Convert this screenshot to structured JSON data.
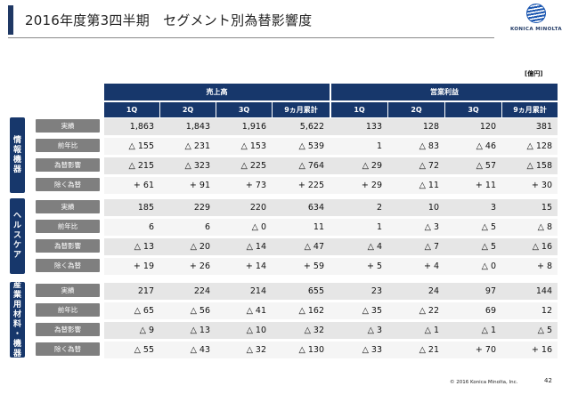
{
  "title": "2016年度第3四半期　セグメント別為替影響度",
  "logo": {
    "text": "KONICA MINOLTA"
  },
  "unit": "[億円]",
  "groups": {
    "sales": "売上高",
    "op": "営業利益"
  },
  "columns": [
    "1Q",
    "2Q",
    "3Q",
    "9ヵ月累計",
    "1Q",
    "2Q",
    "3Q",
    "9ヵ月累計"
  ],
  "segments": [
    {
      "name": "情報機器",
      "rows": [
        {
          "label": "実績",
          "values": [
            "1,863",
            "1,843",
            "1,916",
            "5,622",
            "133",
            "128",
            "120",
            "381"
          ]
        },
        {
          "label": "前年比",
          "values": [
            "△ 155",
            "△ 231",
            "△ 153",
            "△ 539",
            "1",
            "△ 83",
            "△ 46",
            "△ 128"
          ]
        },
        {
          "label": "為替影響",
          "values": [
            "△ 215",
            "△ 323",
            "△ 225",
            "△ 764",
            "△ 29",
            "△ 72",
            "△ 57",
            "△ 158"
          ]
        },
        {
          "label": "除く為替",
          "values": [
            "+ 61",
            "+ 91",
            "+ 73",
            "+ 225",
            "+ 29",
            "△ 11",
            "+ 11",
            "+ 30"
          ]
        }
      ]
    },
    {
      "name": "ヘルスケア",
      "rows": [
        {
          "label": "実績",
          "values": [
            "185",
            "229",
            "220",
            "634",
            "2",
            "10",
            "3",
            "15"
          ]
        },
        {
          "label": "前年比",
          "values": [
            "6",
            "6",
            "△ 0",
            "11",
            "1",
            "△ 3",
            "△ 5",
            "△ 8"
          ]
        },
        {
          "label": "為替影響",
          "values": [
            "△ 13",
            "△ 20",
            "△ 14",
            "△ 47",
            "△ 4",
            "△ 7",
            "△ 5",
            "△ 16"
          ]
        },
        {
          "label": "除く為替",
          "values": [
            "+ 19",
            "+ 26",
            "+ 14",
            "+ 59",
            "+ 5",
            "+ 4",
            "△ 0",
            "+ 8"
          ]
        }
      ]
    },
    {
      "name": "産業用材料・機器",
      "rows": [
        {
          "label": "実績",
          "values": [
            "217",
            "224",
            "214",
            "655",
            "23",
            "24",
            "97",
            "144"
          ]
        },
        {
          "label": "前年比",
          "values": [
            "△ 65",
            "△ 56",
            "△ 41",
            "△ 162",
            "△ 35",
            "△ 22",
            "69",
            "12"
          ]
        },
        {
          "label": "為替影響",
          "values": [
            "△ 9",
            "△ 13",
            "△ 10",
            "△ 32",
            "△ 3",
            "△ 1",
            "△ 1",
            "△ 5"
          ]
        },
        {
          "label": "除く為替",
          "values": [
            "△ 55",
            "△ 43",
            "△ 32",
            "△ 130",
            "△ 33",
            "△ 21",
            "+ 70",
            "+ 16"
          ]
        }
      ]
    }
  ],
  "footer": "© 2016 Konica Minolta, Inc.",
  "page_number": "42"
}
